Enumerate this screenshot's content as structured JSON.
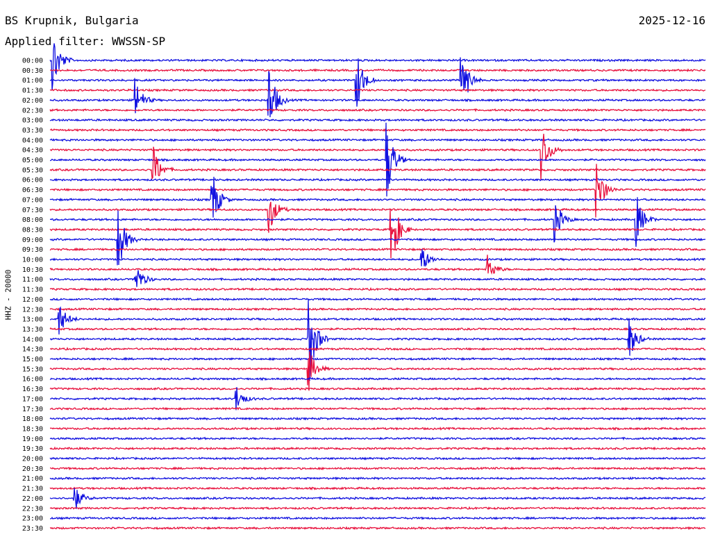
{
  "header": {
    "station": "BS Krupnik, Bulgaria",
    "date": "2025-12-16",
    "filter": "Applied filter: WWSSN-SP",
    "channel": "HHZ - 20000"
  },
  "colors": {
    "even_row": "#1010e0",
    "odd_row": "#e8103c",
    "text": "#000000",
    "background": "#ffffff"
  },
  "chart_data": {
    "type": "line",
    "chart_kind": "helicorder",
    "row_labels": [
      "00:00",
      "00:30",
      "01:00",
      "01:30",
      "02:00",
      "02:30",
      "03:00",
      "03:30",
      "04:00",
      "04:30",
      "05:00",
      "05:30",
      "06:00",
      "06:30",
      "07:00",
      "07:30",
      "08:00",
      "08:30",
      "09:00",
      "09:30",
      "10:00",
      "10:30",
      "11:00",
      "11:30",
      "12:00",
      "12:30",
      "13:00",
      "13:30",
      "14:00",
      "14:30",
      "15:00",
      "15:30",
      "16:00",
      "16:30",
      "17:00",
      "17:30",
      "18:00",
      "18:30",
      "19:00",
      "19:30",
      "20:00",
      "20:30",
      "21:00",
      "21:30",
      "22:00",
      "22:30",
      "23:00",
      "23:30"
    ],
    "row_duration_minutes": 30,
    "row_colors_alternate": [
      "blue",
      "red"
    ],
    "events": [
      {
        "row": "00:00",
        "minute": 0.1,
        "amplitude": 1.0
      },
      {
        "row": "01:00",
        "minute": 14.0,
        "amplitude": 1.0
      },
      {
        "row": "01:00",
        "minute": 18.8,
        "amplitude": 1.1
      },
      {
        "row": "02:00",
        "minute": 3.9,
        "amplitude": 0.6
      },
      {
        "row": "02:00",
        "minute": 10.0,
        "amplitude": 1.1
      },
      {
        "row": "04:30",
        "minute": 22.5,
        "amplitude": 0.8
      },
      {
        "row": "05:00",
        "minute": 15.4,
        "amplitude": 1.2
      },
      {
        "row": "05:30",
        "minute": 4.7,
        "amplitude": 0.7
      },
      {
        "row": "06:30",
        "minute": 25.0,
        "amplitude": 0.9
      },
      {
        "row": "07:00",
        "minute": 7.4,
        "amplitude": 0.9
      },
      {
        "row": "07:30",
        "minute": 10.0,
        "amplitude": 0.7
      },
      {
        "row": "08:00",
        "minute": 23.1,
        "amplitude": 0.6
      },
      {
        "row": "08:00",
        "minute": 26.8,
        "amplitude": 0.8
      },
      {
        "row": "08:30",
        "minute": 15.6,
        "amplitude": 1.2
      },
      {
        "row": "09:00",
        "minute": 3.1,
        "amplitude": 1.0
      },
      {
        "row": "10:00",
        "minute": 17.0,
        "amplitude": 0.4
      },
      {
        "row": "10:30",
        "minute": 20.0,
        "amplitude": 0.4
      },
      {
        "row": "11:00",
        "minute": 3.9,
        "amplitude": 0.5
      },
      {
        "row": "13:00",
        "minute": 0.4,
        "amplitude": 0.5
      },
      {
        "row": "14:00",
        "minute": 11.8,
        "amplitude": 1.6
      },
      {
        "row": "14:00",
        "minute": 26.5,
        "amplitude": 0.6
      },
      {
        "row": "15:30",
        "minute": 11.8,
        "amplitude": 0.7
      },
      {
        "row": "17:00",
        "minute": 8.5,
        "amplitude": 0.4
      },
      {
        "row": "22:00",
        "minute": 1.1,
        "amplitude": 0.4
      }
    ]
  }
}
